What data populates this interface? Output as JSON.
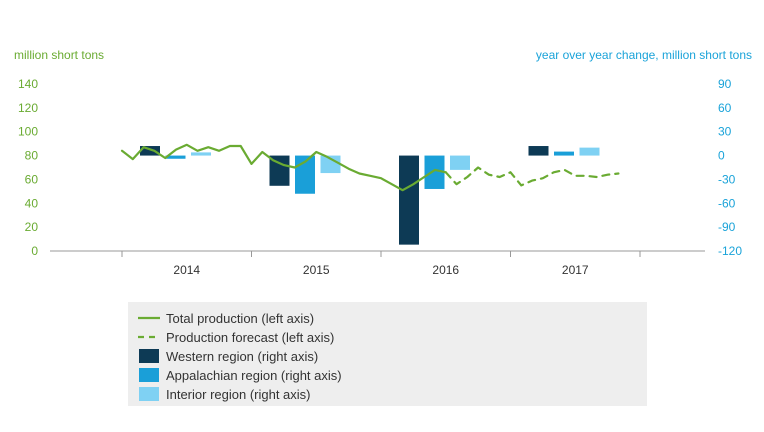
{
  "chart_data": {
    "type": "bar+line",
    "left_axis": {
      "label": "million short tons",
      "ylim": [
        0,
        140
      ],
      "ticks": [
        0,
        20,
        40,
        60,
        80,
        100,
        120,
        140
      ],
      "color": "#6aab32"
    },
    "right_axis": {
      "label": "year over year change, million short tons",
      "ylim": [
        -120,
        90
      ],
      "ticks": [
        -120,
        -90,
        -60,
        -30,
        0,
        30,
        60,
        90
      ],
      "color": "#1aa3d9"
    },
    "x_categories": [
      "2014",
      "2015",
      "2016",
      "2017"
    ],
    "months_per_category": 12,
    "grid": false,
    "lines": [
      {
        "name": "Total production (left axis)",
        "axis": "left",
        "style": "solid",
        "color": "#6aab32",
        "x_month": [
          0,
          1,
          2,
          3,
          4,
          5,
          6,
          7,
          8,
          9,
          10,
          11,
          12,
          13,
          14,
          15,
          16,
          17,
          18,
          19,
          20,
          21,
          22,
          23,
          24,
          25,
          26,
          27,
          28,
          29,
          30
        ],
        "values": [
          84,
          77,
          87,
          84,
          78,
          85,
          89,
          84,
          87,
          84,
          88,
          88,
          73,
          83,
          76,
          72,
          70,
          75,
          83,
          79,
          74,
          69,
          65,
          63,
          61,
          56,
          51,
          56,
          62,
          68,
          66
        ]
      },
      {
        "name": "Production forecast (left axis)",
        "axis": "left",
        "style": "dashed",
        "color": "#6aab32",
        "x_month": [
          30,
          31,
          32,
          33,
          34,
          35,
          36,
          37,
          38,
          39,
          40,
          41,
          42,
          43,
          44,
          45,
          46
        ],
        "values": [
          66,
          56,
          62,
          70,
          64,
          62,
          66,
          55,
          59,
          61,
          66,
          68,
          63,
          63,
          62,
          64,
          65
        ]
      }
    ],
    "bars": [
      {
        "name": "Western region (right axis)",
        "color": "#0d3a55",
        "values": [
          12,
          -38,
          -112,
          12
        ]
      },
      {
        "name": "Appalachian region (right axis)",
        "color": "#1a9fd8",
        "values": [
          -4,
          -48,
          -42,
          5
        ]
      },
      {
        "name": "Interior region (right axis)",
        "color": "#7fd1f3",
        "values": [
          4,
          -22,
          -18,
          10
        ]
      }
    ],
    "legend": {
      "placement": "bottom-center",
      "items": [
        {
          "label": "Total production (left axis)",
          "kind": "line-solid",
          "color": "#6aab32"
        },
        {
          "label": "Production forecast (left axis)",
          "kind": "line-dashed",
          "color": "#6aab32"
        },
        {
          "label": "Western region (right axis)",
          "kind": "box",
          "color": "#0d3a55"
        },
        {
          "label": "Appalachian region (right axis)",
          "kind": "box",
          "color": "#1a9fd8"
        },
        {
          "label": "Interior region (right axis)",
          "kind": "box",
          "color": "#7fd1f3"
        }
      ]
    },
    "colors": {
      "axis_line": "#999999",
      "legend_background": "#eeeeee",
      "category_text": "#333333"
    }
  }
}
